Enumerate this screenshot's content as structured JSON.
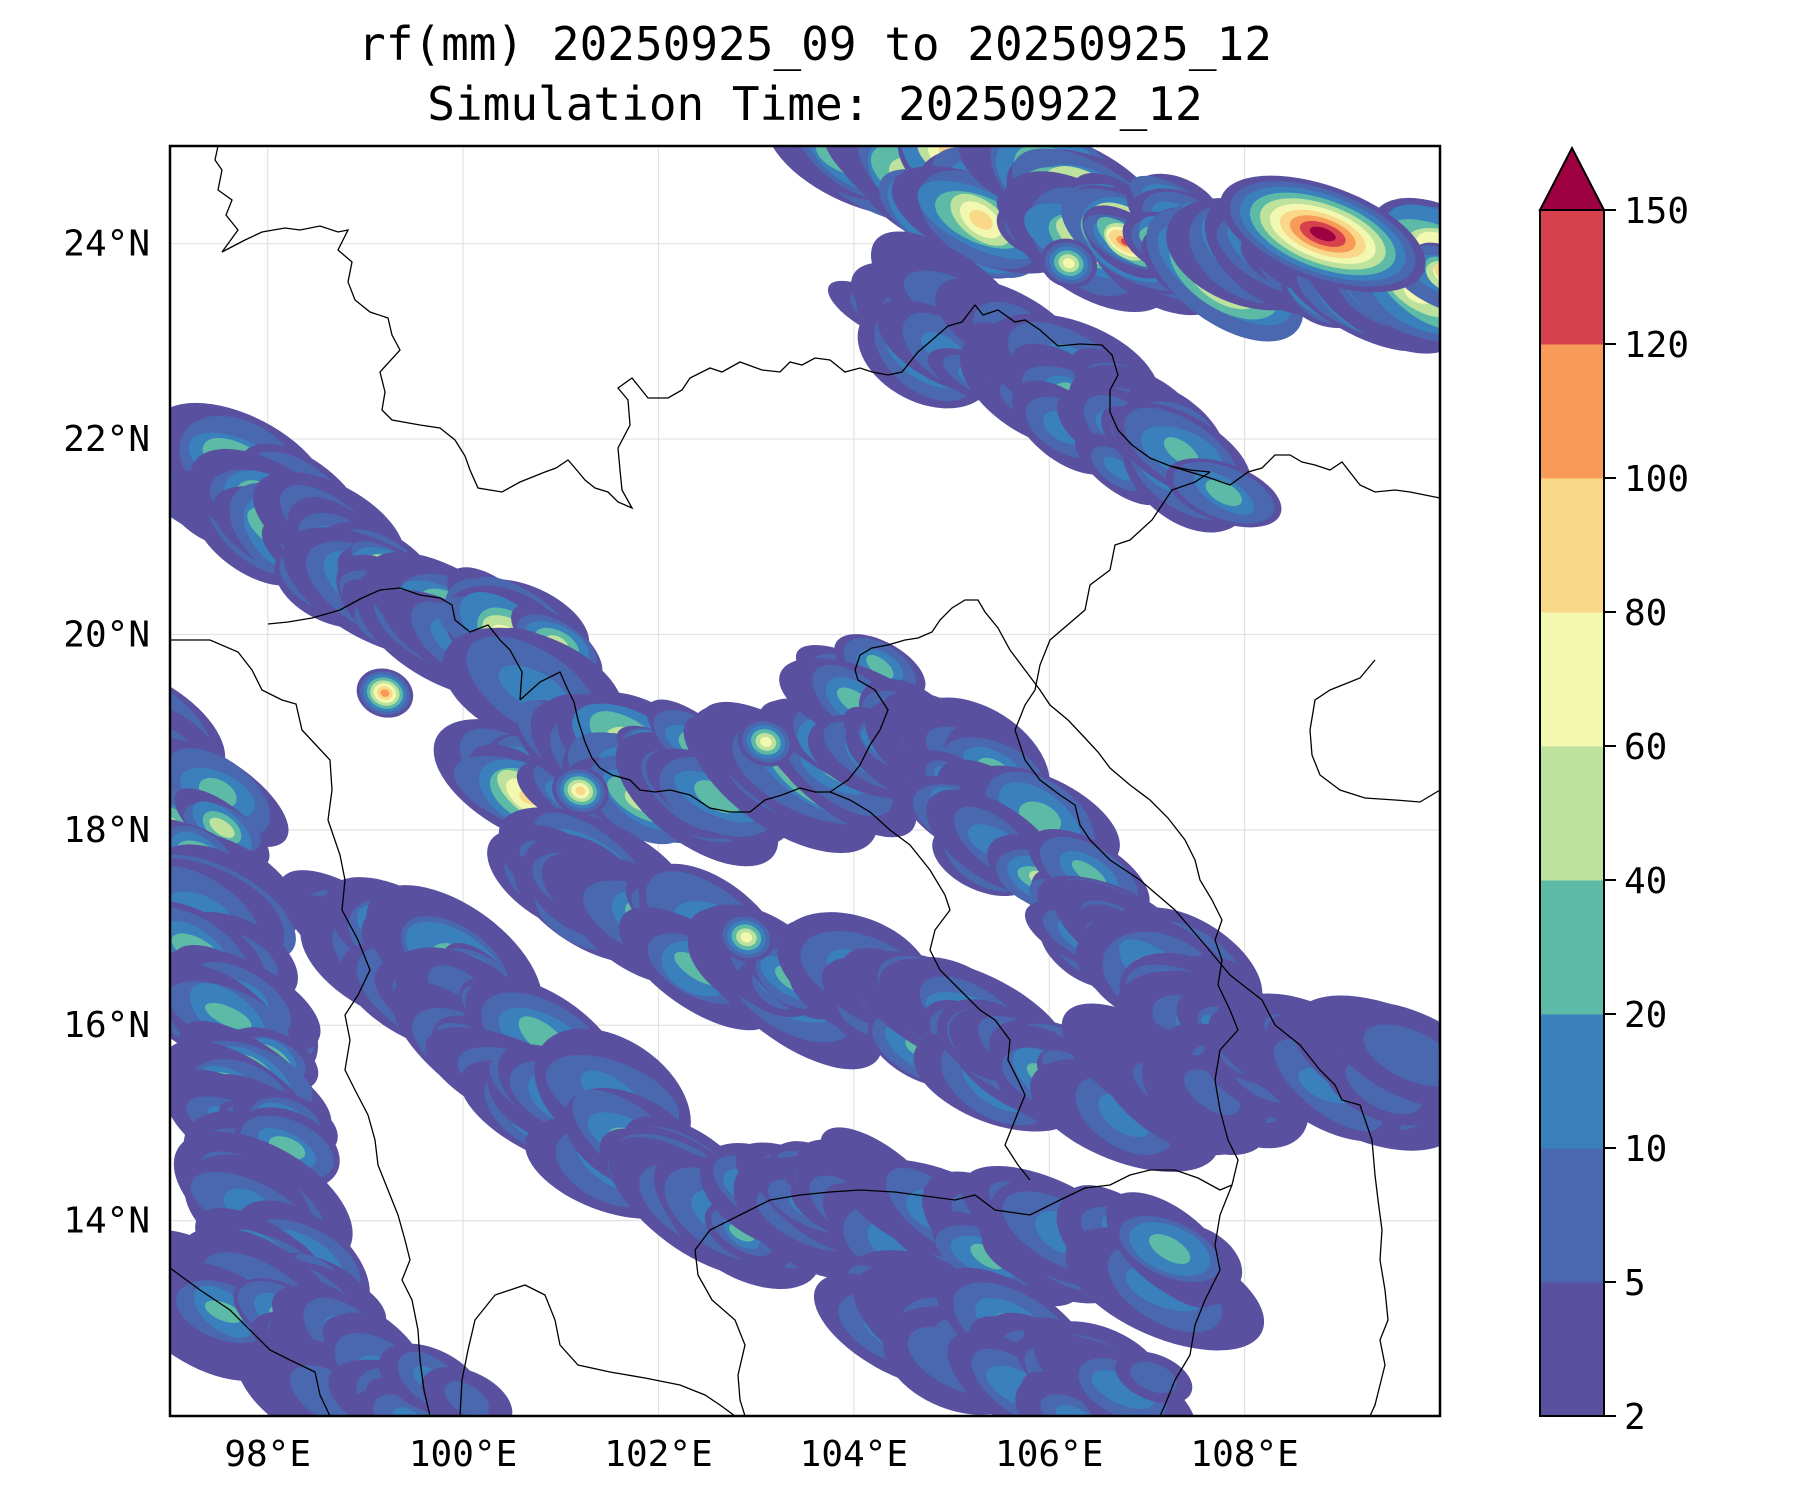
{
  "title_line1": "rf(mm) 20250925_09 to 20250925_12",
  "title_line2": "Simulation Time: 20250922_12",
  "map": {
    "lon_range": [
      97.0,
      110.0
    ],
    "lat_range": [
      12.0,
      25.0
    ],
    "lon_ticks": [
      {
        "value": 98,
        "label": "98°E"
      },
      {
        "value": 100,
        "label": "100°E"
      },
      {
        "value": 102,
        "label": "102°E"
      },
      {
        "value": 104,
        "label": "104°E"
      },
      {
        "value": 106,
        "label": "106°E"
      },
      {
        "value": 108,
        "label": "108°E"
      }
    ],
    "lat_ticks": [
      {
        "value": 14,
        "label": "14°N"
      },
      {
        "value": 16,
        "label": "16°N"
      },
      {
        "value": 18,
        "label": "18°N"
      },
      {
        "value": 20,
        "label": "20°N"
      },
      {
        "value": 22,
        "label": "22°N"
      },
      {
        "value": 24,
        "label": "24°N"
      }
    ],
    "grid": true
  },
  "colorbar": {
    "extend": "max",
    "levels": [
      2,
      5,
      10,
      20,
      40,
      60,
      80,
      100,
      120,
      150
    ],
    "labels": [
      "2",
      "5",
      "10",
      "20",
      "40",
      "60",
      "80",
      "100",
      "120",
      "150"
    ],
    "colors": [
      "#5a50a0",
      "#4a68b0",
      "#3a80bc",
      "#5cbaa6",
      "#bce29e",
      "#f2f8b0",
      "#fad88a",
      "#f89a58",
      "#d7414e",
      "#9e0142"
    ]
  },
  "chart_data": {
    "type": "heatmap",
    "variable": "rf(mm)",
    "xlim": [
      97.0,
      110.0
    ],
    "ylim": [
      12.0,
      25.0
    ],
    "max_region": {
      "lon": 108.8,
      "lat": 24.1,
      "class": ">150"
    },
    "rain_bands": [
      {
        "from": [
          104.0,
          24.8
        ],
        "to": [
          110.0,
          23.5
        ],
        "peak": 150
      },
      {
        "from": [
          104.5,
          23.4
        ],
        "to": [
          107.5,
          21.6
        ],
        "peak": 20
      },
      {
        "from": [
          97.0,
          21.8
        ],
        "to": [
          101.0,
          19.5
        ],
        "peak": 60
      },
      {
        "from": [
          97.0,
          19.0
        ],
        "to": [
          98.5,
          12.0
        ],
        "peak": 40
      },
      {
        "from": [
          100.5,
          18.6
        ],
        "to": [
          104.0,
          18.6
        ],
        "peak": 80
      },
      {
        "from": [
          101.0,
          17.5
        ],
        "to": [
          106.5,
          15.2
        ],
        "peak": 40
      },
      {
        "from": [
          104.0,
          19.5
        ],
        "to": [
          108.0,
          15.6
        ],
        "peak": 40
      },
      {
        "from": [
          99.0,
          17.0
        ],
        "to": [
          103.0,
          13.8
        ],
        "peak": 40
      },
      {
        "from": [
          103.0,
          14.3
        ],
        "to": [
          107.5,
          13.5
        ],
        "peak": 20
      },
      {
        "from": [
          104.5,
          13.0
        ],
        "to": [
          107.0,
          12.1
        ],
        "peak": 20
      },
      {
        "from": [
          97.0,
          13.2
        ],
        "to": [
          100.0,
          12.1
        ],
        "peak": 20
      },
      {
        "from": [
          107.0,
          15.5
        ],
        "to": [
          109.5,
          15.6
        ],
        "peak": 10
      }
    ],
    "hotspots": [
      {
        "lon": 101.2,
        "lat": 18.4,
        "class": "80-100"
      },
      {
        "lon": 103.1,
        "lat": 18.9,
        "class": "60-80"
      },
      {
        "lon": 99.2,
        "lat": 19.4,
        "class": "100-120"
      },
      {
        "lon": 102.9,
        "lat": 16.9,
        "class": "60-80"
      },
      {
        "lon": 106.2,
        "lat": 23.8,
        "class": "60-80"
      }
    ]
  }
}
